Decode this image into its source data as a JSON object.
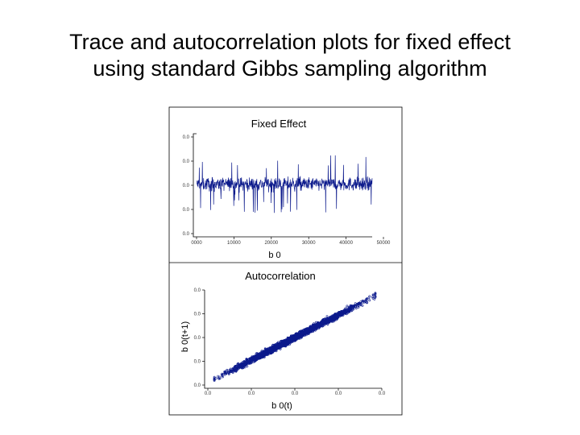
{
  "slide": {
    "title_line1": "Trace and autocorrelation plots for fixed effect",
    "title_line2": "using standard Gibbs sampling algorithm"
  },
  "colors": {
    "series": "#0c1a8c",
    "frame": "#000000",
    "background": "#ffffff"
  },
  "chart_data": [
    {
      "type": "line",
      "title": "Fixed Effect",
      "xlabel": "b 0",
      "ylabel": "",
      "x_ticks": [
        "0000",
        "10000",
        "20000",
        "30000",
        "40000",
        "50000"
      ],
      "y_ticks": [
        "0.0",
        "0.0",
        "0.0",
        "0.0",
        "0.0"
      ],
      "xlim": [
        0,
        50000
      ],
      "ylim": [
        0,
        4
      ],
      "series": [
        {
          "description_of_values": "trace of sampled b0 fluctuating rapidly around a constant mean",
          "mean": 2.05,
          "spread_typical": 0.35,
          "spread_extreme": 1.2
        }
      ],
      "grid": false,
      "legend": "none"
    },
    {
      "type": "scatter",
      "title": "Autocorrelation",
      "xlabel": "b 0(t)",
      "ylabel": "b 0(t+1)",
      "x_ticks": [
        "0.0",
        "0.0",
        "0.0",
        "0.0",
        "0.0"
      ],
      "y_ticks": [
        "0.0",
        "0.0",
        "0.0",
        "0.0",
        "0.0"
      ],
      "xlim": [
        0,
        4
      ],
      "ylim": [
        0,
        4
      ],
      "series": [
        {
          "relation": "b0(t+1) strongly correlated with b0(t), points along diagonal",
          "x_range": [
            0.15,
            3.85
          ],
          "slope": 0.95,
          "intercept": 0.1
        }
      ],
      "grid": false,
      "legend": "none"
    }
  ]
}
